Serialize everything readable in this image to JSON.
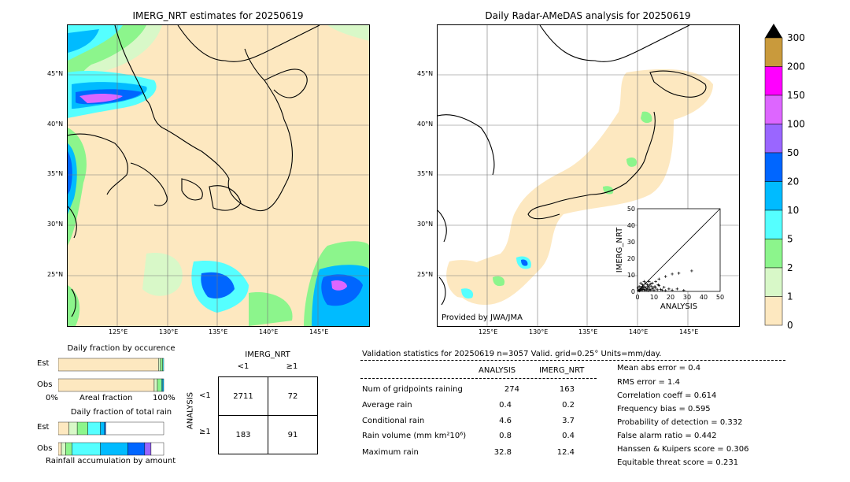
{
  "left_map": {
    "title": "IMERG_NRT estimates for 20250619",
    "lat_labels": [
      "45°N",
      "40°N",
      "35°N",
      "30°N",
      "25°N"
    ],
    "lon_labels": [
      "125°E",
      "130°E",
      "135°E",
      "140°E",
      "145°E"
    ]
  },
  "right_map": {
    "title": "Daily Radar-AMeDAS analysis for 20250619",
    "lat_labels": [
      "45°N",
      "40°N",
      "35°N",
      "30°N",
      "25°N"
    ],
    "lon_labels": [
      "125°E",
      "130°E",
      "135°E",
      "140°E",
      "145°E"
    ],
    "credit": "Provided by JWA/JMA"
  },
  "colorbar": {
    "labels": [
      "300",
      "200",
      "150",
      "100",
      "50",
      "20",
      "10",
      "5",
      "2",
      "1",
      "0"
    ],
    "colors": [
      "#c99a3c",
      "#ff00ff",
      "#dd66ff",
      "#9a66ff",
      "#0066ff",
      "#00bbff",
      "#55ffff",
      "#8cf58c",
      "#d8f8c8",
      "#fde8c0"
    ]
  },
  "scatter": {
    "xlabel": "ANALYSIS",
    "ylabel": "IMERG_NRT",
    "ticks": [
      "0",
      "10",
      "20",
      "30",
      "40",
      "50"
    ]
  },
  "chart_data": [
    {
      "type": "scatter",
      "title": "",
      "xlabel": "ANALYSIS",
      "ylabel": "IMERG_NRT",
      "xlim": [
        0,
        50
      ],
      "ylim": [
        0,
        50
      ],
      "diagonal": true,
      "points": [
        [
          0.5,
          0.5
        ],
        [
          1,
          0.8
        ],
        [
          1.5,
          1.2
        ],
        [
          2,
          0.6
        ],
        [
          2.5,
          1.5
        ],
        [
          3,
          1
        ],
        [
          3.5,
          2
        ],
        [
          4,
          1.2
        ],
        [
          4.5,
          0.6
        ],
        [
          5,
          2.2
        ],
        [
          5.5,
          1
        ],
        [
          6,
          1.8
        ],
        [
          6.5,
          0.5
        ],
        [
          7,
          2.5
        ],
        [
          7.5,
          1.2
        ],
        [
          8,
          0.8
        ],
        [
          8.5,
          3
        ],
        [
          9,
          1.5
        ],
        [
          10,
          0.6
        ],
        [
          11,
          2
        ],
        [
          12,
          1
        ],
        [
          13,
          3.5
        ],
        [
          14,
          1.2
        ],
        [
          15,
          0.8
        ],
        [
          16,
          2.5
        ],
        [
          17,
          0.5
        ],
        [
          19,
          1.5
        ],
        [
          21,
          0.8
        ],
        [
          24,
          1.5
        ],
        [
          28,
          0.6
        ],
        [
          1,
          3
        ],
        [
          2,
          5
        ],
        [
          3,
          4
        ],
        [
          4,
          6
        ],
        [
          5,
          5
        ],
        [
          6,
          4
        ],
        [
          7,
          6
        ],
        [
          8,
          4.5
        ],
        [
          9,
          5
        ],
        [
          11,
          6
        ],
        [
          13,
          7.5
        ],
        [
          17,
          9
        ],
        [
          21,
          10.5
        ],
        [
          25,
          11
        ],
        [
          32.8,
          12.4
        ],
        [
          0.3,
          2
        ],
        [
          1.2,
          0.3
        ],
        [
          2.2,
          2.5
        ],
        [
          3.2,
          3
        ],
        [
          4.2,
          2.8
        ],
        [
          6.2,
          3.2
        ],
        [
          7.2,
          3.8
        ],
        [
          9.5,
          2.2
        ],
        [
          10.5,
          3
        ],
        [
          12.5,
          4
        ]
      ]
    },
    {
      "type": "bar",
      "title": "Daily fraction by occurence",
      "xlabel": "Areal fraction",
      "categories": [
        "Est",
        "Obs"
      ],
      "series": [
        {
          "name": "0",
          "values": [
            0.95,
            0.91
          ]
        },
        {
          "name": "1",
          "values": [
            0.02,
            0.03
          ]
        },
        {
          "name": "2",
          "values": [
            0.02,
            0.04
          ]
        },
        {
          "name": "5",
          "values": [
            0.01,
            0.01
          ]
        },
        {
          "name": "10",
          "values": [
            0.0,
            0.01
          ]
        }
      ],
      "xlim": [
        0,
        1
      ]
    },
    {
      "type": "bar",
      "title": "Daily fraction of total rain",
      "xlabel": "Rainfall accumulation by amount",
      "categories": [
        "Est",
        "Obs"
      ],
      "series": [
        {
          "name": "0",
          "values": [
            0.1,
            0.03
          ]
        },
        {
          "name": "1",
          "values": [
            0.08,
            0.04
          ]
        },
        {
          "name": "2",
          "values": [
            0.1,
            0.06
          ]
        },
        {
          "name": "5",
          "values": [
            0.12,
            0.27
          ]
        },
        {
          "name": "10",
          "values": [
            0.04,
            0.26
          ]
        },
        {
          "name": "20",
          "values": [
            0.01,
            0.16
          ]
        },
        {
          "name": "50",
          "values": [
            0.0,
            0.06
          ]
        }
      ],
      "xlim": [
        0,
        1
      ]
    }
  ],
  "frac_occ": {
    "title": "Daily fraction by occurence",
    "est_label": "Est",
    "obs_label": "Obs",
    "x0": "0%",
    "xlabel": "Areal fraction",
    "x1": "100%"
  },
  "frac_rain": {
    "title": "Daily fraction of total rain",
    "est_label": "Est",
    "obs_label": "Obs",
    "xlabel": "Rainfall accumulation by amount"
  },
  "contingency": {
    "col_title": "IMERG_NRT",
    "col_lt": "<1",
    "col_ge": "≥1",
    "row_title": "ANALYSIS",
    "row_lt": "<1",
    "row_ge": "≥1",
    "a": "2711",
    "b": "72",
    "c": "183",
    "d": "91"
  },
  "stats": {
    "header": "Validation statistics for 20250619  n=3057 Valid. grid=0.25° Units=mm/day.",
    "col_analysis": "ANALYSIS",
    "col_imerg": "IMERG_NRT",
    "rows": [
      {
        "label": "Num of gridpoints raining",
        "analysis": "274",
        "imerg": "163"
      },
      {
        "label": "Average rain",
        "analysis": "0.4",
        "imerg": "0.2"
      },
      {
        "label": "Conditional rain",
        "analysis": "4.6",
        "imerg": "3.7"
      },
      {
        "label": "Rain volume (mm km²10⁶)",
        "analysis": "0.8",
        "imerg": "0.4"
      },
      {
        "label": "Maximum rain",
        "analysis": "32.8",
        "imerg": "12.4"
      }
    ],
    "right": [
      "Mean abs error =    0.4",
      "RMS error =    1.4",
      "Correlation coeff =  0.614",
      "Frequency bias =  0.595",
      "Probability of detection =  0.332",
      "False alarm ratio =  0.442",
      "Hanssen & Kuipers score =  0.306",
      "Equitable threat score =  0.231"
    ]
  }
}
